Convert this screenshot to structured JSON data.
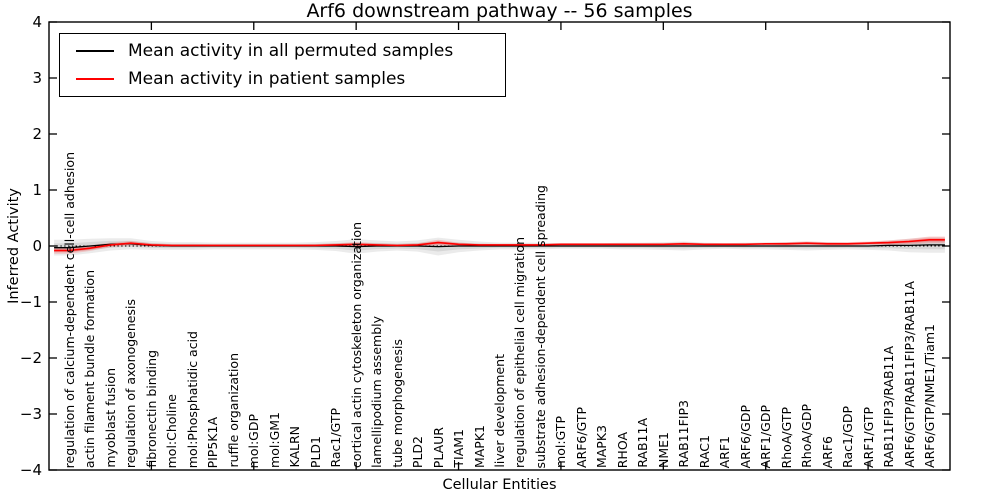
{
  "title": "Arf6 downstream pathway -- 56 samples",
  "legend": {
    "items": [
      {
        "label": "Mean activity in all permuted samples",
        "color": "#000000"
      },
      {
        "label": "Mean activity in patient samples",
        "color": "#ff0000"
      }
    ]
  },
  "chart_data": {
    "type": "line",
    "title": "Arf6 downstream pathway -- 56 samples",
    "xlabel": "Cellular Entities",
    "ylabel": "Inferred Activity",
    "ylim": [
      -4,
      4
    ],
    "yticks": [
      4,
      3,
      2,
      1,
      0,
      -1,
      -2,
      -3,
      -4
    ],
    "grid": false,
    "zero_line": true,
    "legend_position": "upper left",
    "categories": [
      "regulation of calcium-dependent cell-cell adhesion",
      "actin filament bundle formation",
      "myoblast fusion",
      "regulation of axonogenesis",
      "fibronectin binding",
      "mol:Choline",
      "mol:Phosphatidic acid",
      "PIP5K1A",
      "ruffle organization",
      "mol:GDP",
      "mol:GM1",
      "KALRN",
      "PLD1",
      "Rac1/GTP",
      "cortical actin cytoskeleton organization",
      "lamellipodium assembly",
      "tube morphogenesis",
      "PLD2",
      "PLAUR",
      "TIAM1",
      "MAPK1",
      "liver development",
      "regulation of epithelial cell migration",
      "substrate adhesion-dependent cell spreading",
      "mol:GTP",
      "ARF6/GTP",
      "MAPK3",
      "RHOA",
      "RAB11A",
      "NME1",
      "RAB11FIP3",
      "RAC1",
      "ARF1",
      "ARF6/GDP",
      "ARF1/GDP",
      "RhoA/GTP",
      "RhoA/GDP",
      "ARF6",
      "Rac1/GDP",
      "ARF1/GTP",
      "RAB11FIP3/RAB11A",
      "ARF6/GTP/RAB11FIP3/RAB11A",
      "ARF6/GTP/NME1/Tiam1"
    ],
    "series": [
      {
        "name": "Mean activity in all permuted samples",
        "color": "#000000",
        "values": [
          -0.03,
          0.0,
          0.03,
          0.04,
          0.01,
          0.0,
          0.0,
          0.0,
          0.0,
          0.0,
          0.0,
          0.0,
          0.0,
          0.0,
          -0.01,
          0.0,
          0.0,
          0.0,
          -0.01,
          0.0,
          0.0,
          0.0,
          0.0,
          0.0,
          0.0,
          0.0,
          0.0,
          0.0,
          0.0,
          0.0,
          0.0,
          0.0,
          0.0,
          0.0,
          0.0,
          0.0,
          0.0,
          0.0,
          0.0,
          0.0,
          0.01,
          0.01,
          0.02
        ],
        "band_half_width": [
          0.14,
          0.13,
          0.11,
          0.1,
          0.08,
          0.07,
          0.07,
          0.06,
          0.06,
          0.06,
          0.06,
          0.06,
          0.07,
          0.09,
          0.13,
          0.1,
          0.08,
          0.1,
          0.16,
          0.11,
          0.08,
          0.06,
          0.06,
          0.06,
          0.05,
          0.05,
          0.05,
          0.06,
          0.06,
          0.07,
          0.08,
          0.06,
          0.05,
          0.06,
          0.06,
          0.07,
          0.08,
          0.07,
          0.06,
          0.07,
          0.09,
          0.12,
          0.14
        ],
        "band_color": "#808080"
      },
      {
        "name": "Mean activity in patient samples",
        "color": "#ff0000",
        "values": [
          -0.08,
          -0.04,
          0.02,
          0.05,
          0.02,
          0.01,
          0.01,
          0.01,
          0.01,
          0.01,
          0.01,
          0.01,
          0.01,
          0.02,
          0.03,
          0.02,
          0.01,
          0.02,
          0.06,
          0.03,
          0.02,
          0.02,
          0.02,
          0.02,
          0.03,
          0.03,
          0.03,
          0.03,
          0.03,
          0.03,
          0.04,
          0.03,
          0.03,
          0.03,
          0.04,
          0.04,
          0.05,
          0.04,
          0.04,
          0.05,
          0.06,
          0.08,
          0.11
        ],
        "band_half_width": [
          0.06,
          0.05,
          0.04,
          0.04,
          0.03,
          0.02,
          0.02,
          0.02,
          0.02,
          0.02,
          0.02,
          0.02,
          0.02,
          0.03,
          0.04,
          0.03,
          0.02,
          0.03,
          0.05,
          0.03,
          0.02,
          0.02,
          0.02,
          0.02,
          0.02,
          0.02,
          0.02,
          0.02,
          0.02,
          0.02,
          0.03,
          0.02,
          0.02,
          0.02,
          0.02,
          0.03,
          0.03,
          0.03,
          0.03,
          0.03,
          0.04,
          0.05,
          0.06
        ],
        "band_color": "#ff0000"
      }
    ]
  }
}
